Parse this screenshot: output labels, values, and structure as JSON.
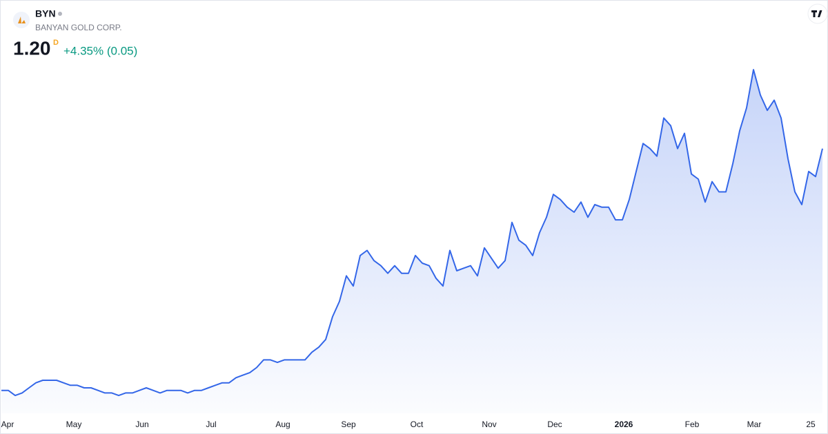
{
  "header": {
    "symbol": "BYN",
    "name": "BANYAN GOLD CORP.",
    "price": "1.20",
    "interval": "D",
    "change": "+4.35% (0.05)"
  },
  "chart_data": {
    "type": "line",
    "color": "#3366e8",
    "values": [
      0.25,
      0.25,
      0.23,
      0.24,
      0.26,
      0.28,
      0.29,
      0.29,
      0.29,
      0.28,
      0.27,
      0.27,
      0.26,
      0.26,
      0.25,
      0.24,
      0.24,
      0.23,
      0.24,
      0.24,
      0.25,
      0.26,
      0.25,
      0.24,
      0.25,
      0.25,
      0.25,
      0.24,
      0.25,
      0.25,
      0.26,
      0.27,
      0.28,
      0.28,
      0.3,
      0.31,
      0.32,
      0.34,
      0.37,
      0.37,
      0.36,
      0.37,
      0.37,
      0.37,
      0.37,
      0.4,
      0.42,
      0.45,
      0.54,
      0.6,
      0.7,
      0.66,
      0.78,
      0.8,
      0.76,
      0.74,
      0.71,
      0.74,
      0.71,
      0.71,
      0.78,
      0.75,
      0.74,
      0.69,
      0.66,
      0.8,
      0.72,
      0.73,
      0.74,
      0.7,
      0.81,
      0.77,
      0.73,
      0.76,
      0.91,
      0.84,
      0.82,
      0.78,
      0.87,
      0.93,
      1.02,
      1.0,
      0.97,
      0.95,
      0.99,
      0.93,
      0.98,
      0.97,
      0.97,
      0.92,
      0.92,
      1.0,
      1.11,
      1.22,
      1.2,
      1.17,
      1.32,
      1.29,
      1.2,
      1.26,
      1.1,
      1.08,
      0.99,
      1.07,
      1.03,
      1.03,
      1.14,
      1.27,
      1.36,
      1.51,
      1.41,
      1.35,
      1.39,
      1.32,
      1.16,
      1.03,
      0.98,
      1.11,
      1.09,
      1.2
    ],
    "xlim": [
      0,
      119
    ],
    "xticks": [
      {
        "value": 0.9,
        "label": "Apr"
      },
      {
        "value": 10.5,
        "label": "May"
      },
      {
        "value": 20.4,
        "label": "Jun"
      },
      {
        "value": 30.4,
        "label": "Jul"
      },
      {
        "value": 40.8,
        "label": "Aug"
      },
      {
        "value": 50.3,
        "label": "Sep"
      },
      {
        "value": 60.2,
        "label": "Oct"
      },
      {
        "value": 70.7,
        "label": "Nov"
      },
      {
        "value": 80.2,
        "label": "Dec"
      },
      {
        "value": 90.2,
        "label": "2026",
        "bold": true
      },
      {
        "value": 100.1,
        "label": "Feb"
      },
      {
        "value": 109.1,
        "label": "Mar"
      },
      {
        "value": 117.3,
        "label": "25"
      }
    ],
    "ylim": [
      0.16,
      1.54
    ]
  }
}
